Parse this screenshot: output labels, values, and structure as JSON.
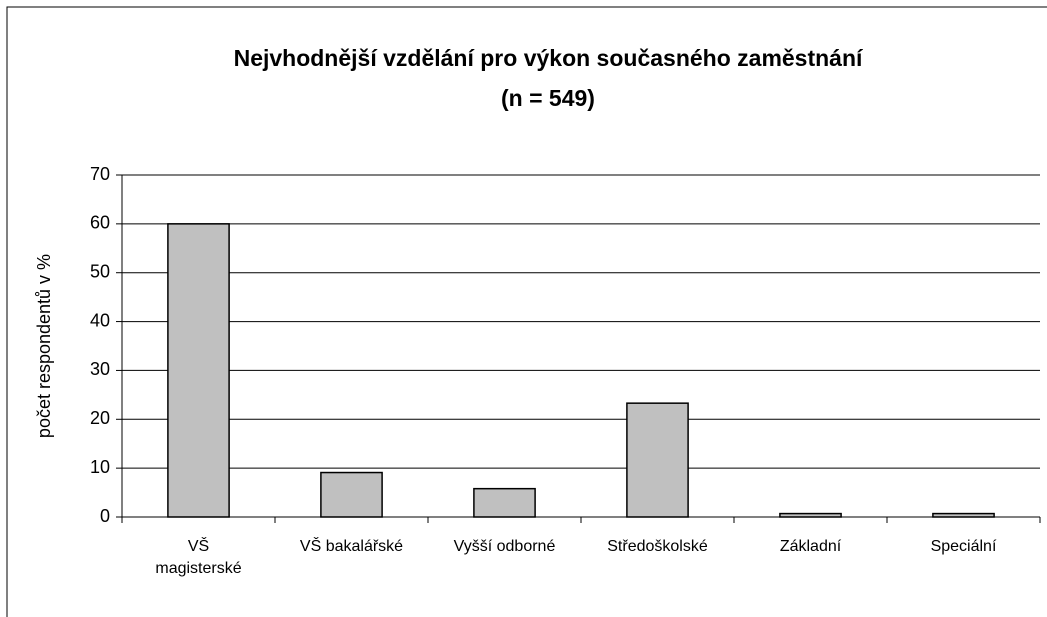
{
  "chart_data": {
    "type": "bar",
    "title": "Nejvhodnější vzdělání pro výkon současného zaměstnání",
    "subtitle": "(n = 549)",
    "y_label": "počet respondentů v %",
    "categories": [
      "VŠ\nmagisterské",
      "VŠ bakalářské",
      "Vyšší odborné",
      "Středoškolské",
      "Základní",
      "Speciální"
    ],
    "values": [
      60,
      9.1,
      5.8,
      23.3,
      0.7,
      0.7
    ],
    "color": "#c0c0c0",
    "ylim": [
      0,
      70
    ],
    "yticks": [
      0,
      10,
      20,
      30,
      40,
      50,
      60,
      70
    ],
    "grid": true
  }
}
